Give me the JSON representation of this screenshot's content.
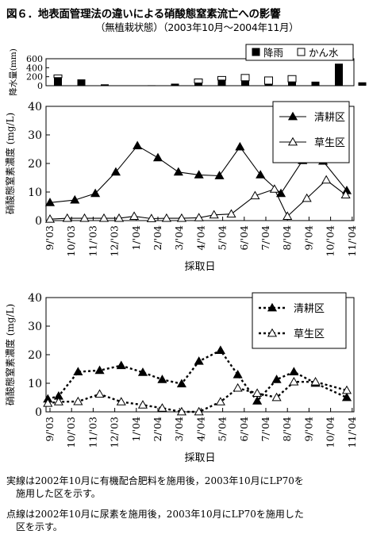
{
  "figure": {
    "title": "図６．地表面管理法の違いによる硝酸態窒素流亡への影響",
    "subtitle": "（無植栽状態）（2003年10月～2004年11月）"
  },
  "chart_data": [
    {
      "type": "bar",
      "ylabel": "降水量(mm)",
      "yticks": [
        "600",
        "400",
        "200",
        "0"
      ],
      "ylim": [
        0,
        600
      ],
      "series": [
        {
          "name": "降雨",
          "color": "#000000",
          "values": [
            180,
            140,
            30,
            0,
            10,
            45,
            60,
            125,
            110,
            35,
            85,
            90,
            490,
            75
          ]
        },
        {
          "name": "かん水",
          "color": "#ffffff",
          "values": [
            60,
            0,
            0,
            0,
            0,
            0,
            90,
            80,
            140,
            160,
            140,
            0,
            0,
            0
          ]
        }
      ],
      "legend_position": "top-right"
    },
    {
      "type": "line",
      "ylabel": "硝酸態窒素濃度 (mg/L)",
      "xlabel": "採取日",
      "ylim": [
        0,
        40
      ],
      "yticks": [
        "0",
        "10",
        "20",
        "30",
        "40"
      ],
      "xticks": [
        "9/'03",
        "10/'03",
        "11/'03",
        "12/'03",
        "1/'04",
        "2/'04",
        "3/'04",
        "4/'04",
        "5/'04",
        "6/'04",
        "7/'04",
        "8/'04",
        "9/'04",
        "10/'04",
        "11/'04"
      ],
      "line_style": "solid",
      "legend_position": "top-right",
      "series": [
        {
          "name": "清耕区",
          "marker": "filled-triangle",
          "x": [
            0,
            1.15,
            2.1,
            3.05,
            4.05,
            5.0,
            5.95,
            6.9,
            7.85,
            8.8,
            9.75,
            10.7,
            11.7,
            12.65,
            13.75
          ],
          "y": [
            6.3,
            7.2,
            9.5,
            17.0,
            26.2,
            22.0,
            17.0,
            16.0,
            15.7,
            25.8,
            16.0,
            9.5,
            21.0,
            20.8,
            10.5
          ]
        },
        {
          "name": "草生区",
          "marker": "open-triangle",
          "x": [
            0,
            0.8,
            1.6,
            2.5,
            3.2,
            3.9,
            4.7,
            5.4,
            6.1,
            6.9,
            7.6,
            8.4,
            9.5,
            10.4,
            11.0,
            11.9,
            12.8,
            13.7
          ],
          "y": [
            0.5,
            0.8,
            0.8,
            0.8,
            0.8,
            1.5,
            0.7,
            0.8,
            0.8,
            1.0,
            2.0,
            2.3,
            8.7,
            11.0,
            1.5,
            7.8,
            14.2,
            9.0
          ]
        }
      ]
    },
    {
      "type": "line",
      "ylabel": "硝酸態窒素濃度 (mg/L)",
      "xlabel": "採取日",
      "ylim": [
        0,
        40
      ],
      "yticks": [
        "0",
        "10",
        "20",
        "30",
        "40"
      ],
      "xticks": [
        "9/'03",
        "10/'03",
        "11/'03",
        "12/'03",
        "1/'04",
        "2/'04",
        "3/'04",
        "4/'04",
        "5/'04",
        "6/'04",
        "7/'04",
        "8/'04",
        "9/'04",
        "10/'04",
        "11/'04"
      ],
      "line_style": "dotted",
      "legend_position": "top-right",
      "series": [
        {
          "name": "清耕区",
          "marker": "filled-triangle",
          "x": [
            -0.1,
            0.4,
            1.3,
            2.3,
            3.3,
            4.3,
            5.2,
            6.1,
            6.9,
            7.9,
            8.7,
            9.6,
            10.5,
            11.3,
            12.3,
            13.75
          ],
          "y": [
            4.5,
            5.5,
            14.0,
            14.5,
            16.2,
            13.8,
            11.3,
            9.8,
            17.7,
            21.5,
            13.0,
            3.8,
            11.3,
            14.0,
            10.0,
            5.0
          ]
        },
        {
          "name": "草生区",
          "marker": "open-triangle",
          "x": [
            -0.1,
            0.4,
            1.3,
            2.3,
            3.3,
            4.3,
            5.2,
            6.1,
            6.9,
            7.9,
            8.7,
            9.6,
            10.5,
            11.3,
            12.3,
            13.75
          ],
          "y": [
            3.0,
            3.5,
            3.6,
            6.2,
            3.5,
            2.4,
            1.3,
            0.0,
            0.0,
            3.5,
            8.3,
            6.5,
            5.0,
            10.5,
            10.5,
            7.5
          ]
        }
      ]
    }
  ],
  "notes": [
    {
      "line1": "実線は2002年10月に有機配合肥料を施用後，2003年10月にLP70を",
      "line2": "施用した区を示す。"
    },
    {
      "line1": "点線は2002年10月に尿素を施用後，2003年10月にLP70を施用した",
      "line2": "区を示す。"
    }
  ]
}
